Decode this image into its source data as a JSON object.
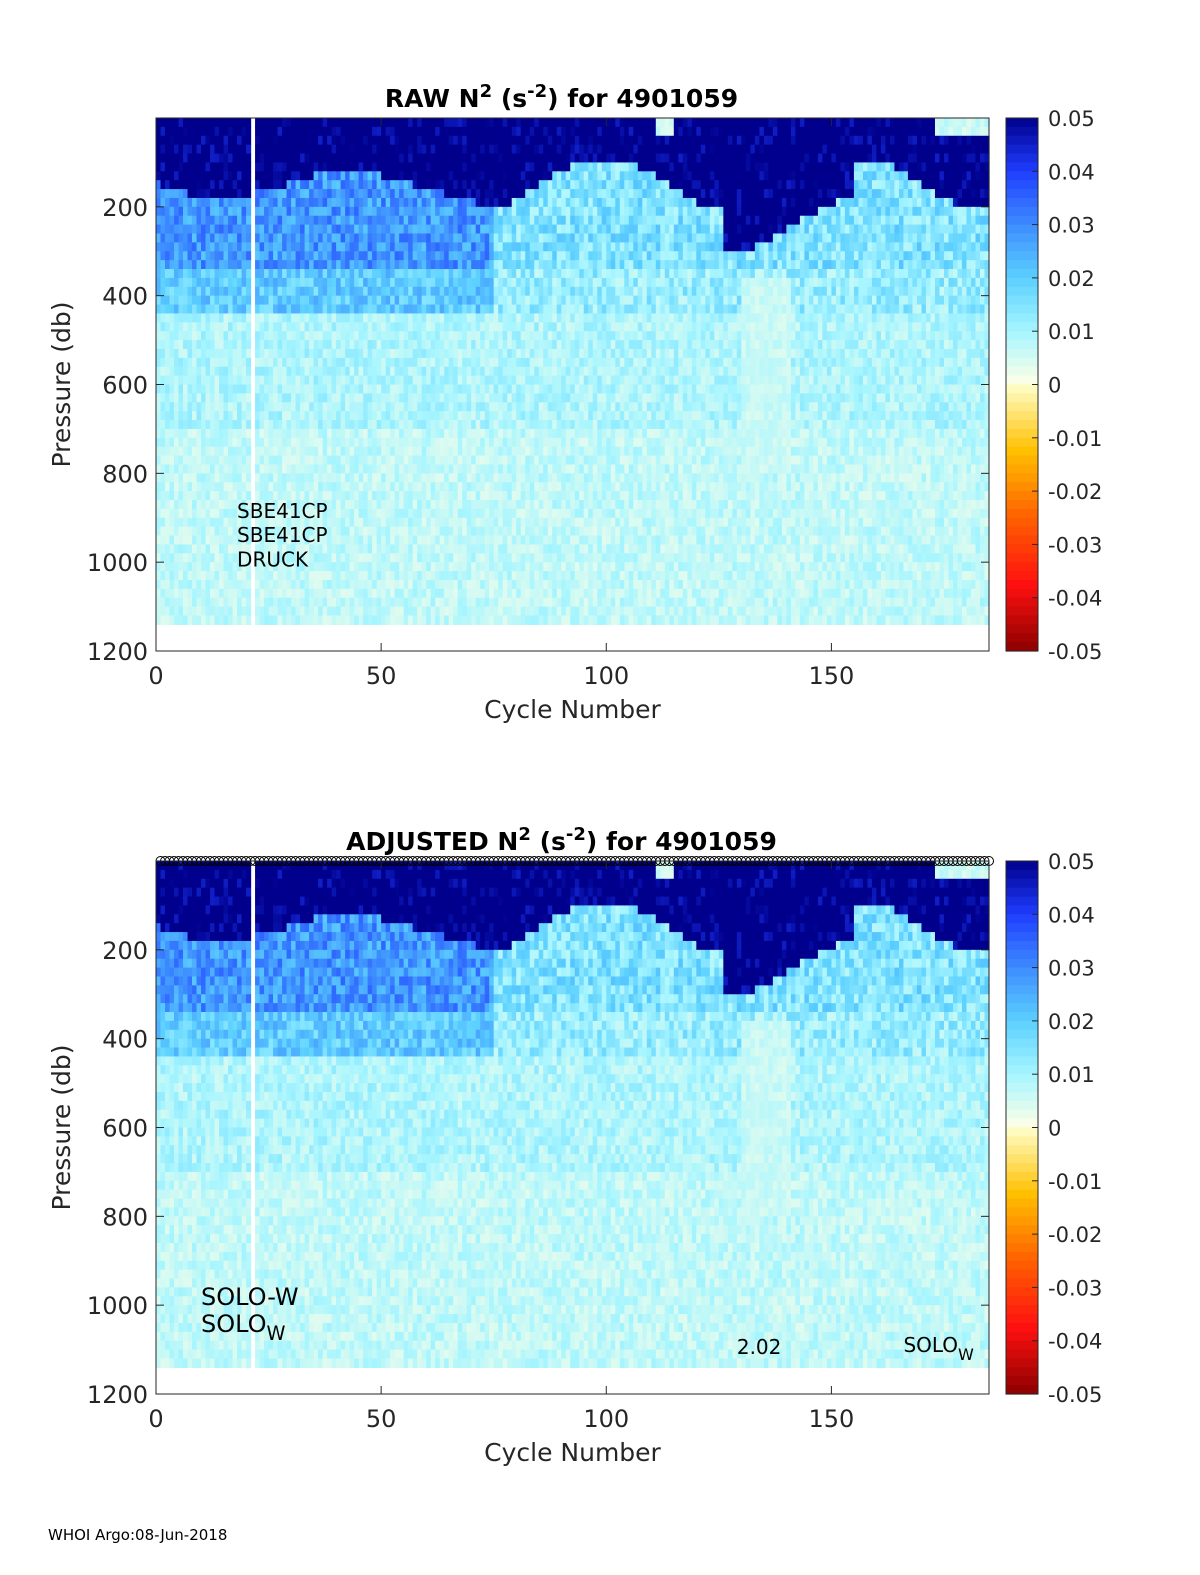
{
  "footer": "WHOI Argo:08-Jun-2018",
  "colorbar": {
    "ticks": [
      0.05,
      0.04,
      0.03,
      0.02,
      0.01,
      0,
      -0.01,
      -0.02,
      -0.03,
      -0.04,
      -0.05
    ],
    "tick_labels": [
      "0.05",
      "0.04",
      "0.03",
      "0.02",
      "0.01",
      "0",
      "-0.01",
      "-0.02",
      "-0.03",
      "-0.04",
      "-0.05"
    ],
    "range": [
      -0.05,
      0.05
    ],
    "colors": {
      "positive": [
        "#ffffe6",
        "#a6f5ff",
        "#5cd0ff",
        "#3d8cff",
        "#1f3dff",
        "#00008c"
      ],
      "negative": [
        "#ffffcc",
        "#ffc000",
        "#ff6000",
        "#ff1010",
        "#8c0000"
      ]
    }
  },
  "chart_data": [
    {
      "type": "heatmap",
      "title_prefix": "RAW N",
      "title_sup1": "2",
      "title_mid": " (s",
      "title_sup2": "-2",
      "title_suffix": ") for 4901059",
      "xlabel": "Cycle Number",
      "ylabel": "Pressure (db)",
      "xlim": [
        0,
        185
      ],
      "ylim": [
        1200,
        0
      ],
      "xticks": [
        0,
        50,
        100,
        150
      ],
      "xtick_labels": [
        "0",
        "50",
        "100",
        "150"
      ],
      "yticks": [
        200,
        400,
        600,
        800,
        1000,
        1200
      ],
      "ytick_labels": [
        "200",
        "400",
        "600",
        "800",
        "1000",
        "1200"
      ],
      "data_max_pressure": 1150,
      "gap_cycles": [
        21
      ],
      "annotations": [
        {
          "text": "SBE41CP",
          "x": 18,
          "y": 900
        },
        {
          "text": "SBE41CP",
          "x": 18,
          "y": 955
        },
        {
          "text": "DRUCK",
          "x": 18,
          "y": 1010
        }
      ],
      "layers_description": "N2 ~0.05 (saturated) 0-150 db, ~0.03 150-350 db, ~0.02 350-450 db, ~0.01 below"
    },
    {
      "type": "heatmap",
      "title_prefix": "ADJUSTED N",
      "title_sup1": "2",
      "title_mid": " (s",
      "title_sup2": "-2",
      "title_suffix": ") for 4901059",
      "xlabel": "Cycle Number",
      "ylabel": "Pressure (db)",
      "xlim": [
        0,
        185
      ],
      "ylim": [
        1200,
        0
      ],
      "xticks": [
        0,
        50,
        100,
        150
      ],
      "xtick_labels": [
        "0",
        "50",
        "100",
        "150"
      ],
      "yticks": [
        200,
        400,
        600,
        800,
        1000,
        1200
      ],
      "ytick_labels": [
        "200",
        "400",
        "600",
        "800",
        "1000",
        "1200"
      ],
      "data_max_pressure": 1150,
      "gap_cycles": [
        21
      ],
      "markers": {
        "shape": "circle",
        "y": 0,
        "cycles_from": 1,
        "cycles_to": 185
      },
      "annotations": [
        {
          "text": "SOLO-W",
          "x": 10,
          "y": 1000
        },
        {
          "text": "SOLO",
          "sub": "W",
          "x": 10,
          "y": 1060
        },
        {
          "text": "2.02",
          "x": 129,
          "y": 1110
        },
        {
          "text": "SOLO",
          "sub": "W",
          "x": 166,
          "y": 1105
        }
      ]
    }
  ]
}
